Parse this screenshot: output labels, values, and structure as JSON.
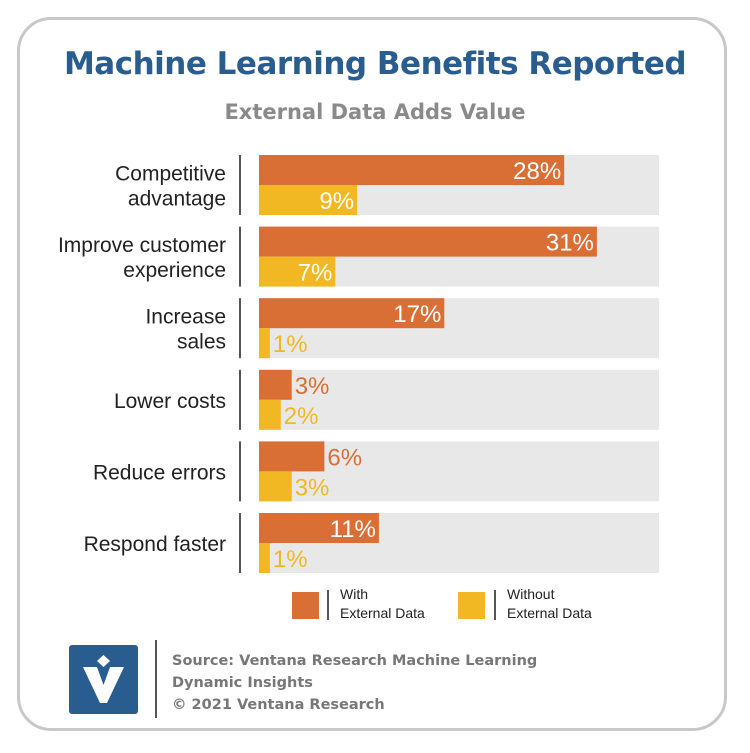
{
  "header": {
    "title": "Machine Learning Benefits Reported",
    "subtitle": "External Data Adds Value"
  },
  "chart_data": {
    "type": "bar",
    "orientation": "horizontal",
    "categories": [
      [
        "Competitive",
        "advantage"
      ],
      [
        "Improve customer",
        "experience"
      ],
      [
        "Increase",
        "sales"
      ],
      [
        "Lower costs"
      ],
      [
        "Reduce errors"
      ],
      [
        "Respond faster"
      ]
    ],
    "series": [
      {
        "name": "With External Data",
        "values": [
          28,
          31,
          17,
          3,
          6,
          11
        ],
        "color": "#d96f35"
      },
      {
        "name": "Without External Data",
        "values": [
          9,
          7,
          1,
          2,
          3,
          1
        ],
        "color": "#f2b824"
      }
    ],
    "value_suffix": "%",
    "xlim": [
      0,
      36
    ],
    "grid": false,
    "background_track_color": "#e8e8e8",
    "legend_position": "bottom"
  },
  "legend": {
    "with": [
      "With",
      "External Data"
    ],
    "without": [
      "Without",
      "External Data"
    ]
  },
  "footer": {
    "lines": [
      "Source: Ventana Research Machine Learning",
      "Dynamic Insights",
      "© 2021 Ventana Research"
    ]
  },
  "logo": {
    "icon": "ventana-v-logo",
    "color": "#2a5d8f"
  }
}
